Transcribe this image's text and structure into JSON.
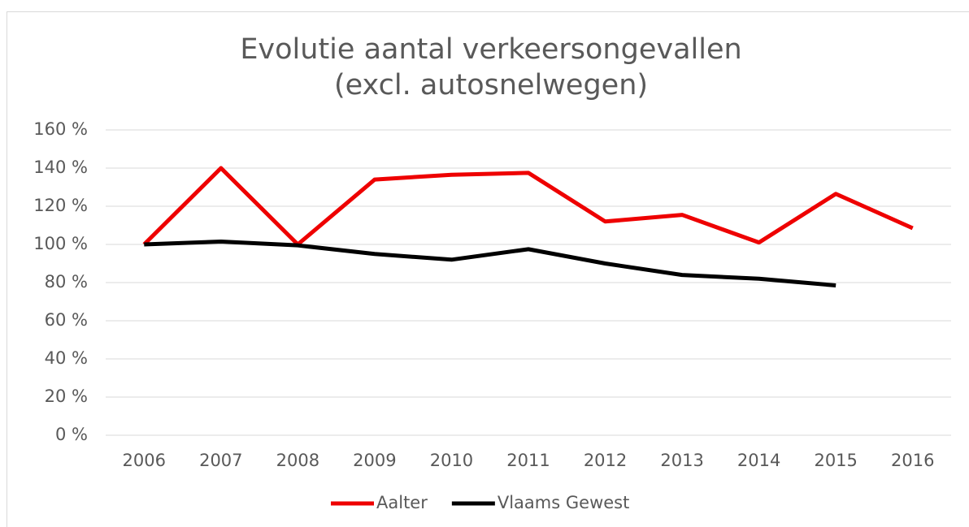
{
  "chart_data": {
    "type": "line",
    "title": [
      "Evolutie aantal verkeersongevallen",
      "(excl. autosnelwegen)"
    ],
    "categories": [
      "2006",
      "2007",
      "2008",
      "2009",
      "2010",
      "2011",
      "2012",
      "2013",
      "2014",
      "2015",
      "2016"
    ],
    "series": [
      {
        "name": "Aalter",
        "color": "#ee0000",
        "values": [
          100,
          140,
          100,
          134,
          136.5,
          137.5,
          112,
          115.5,
          101,
          126.5,
          108.5
        ]
      },
      {
        "name": "Vlaams Gewest",
        "color": "#000000",
        "values": [
          100,
          101.5,
          99.5,
          95,
          92,
          97.5,
          90,
          84,
          82,
          78.5,
          null
        ]
      }
    ],
    "ylim": [
      0,
      160
    ],
    "yticks": [
      {
        "value": 0,
        "label": "0 %"
      },
      {
        "value": 20,
        "label": "20 %"
      },
      {
        "value": 40,
        "label": "40 %"
      },
      {
        "value": 60,
        "label": "60 %"
      },
      {
        "value": 80,
        "label": "80 %"
      },
      {
        "value": 100,
        "label": "100 %"
      },
      {
        "value": 120,
        "label": "120 %"
      },
      {
        "value": 140,
        "label": "140 %"
      },
      {
        "value": 160,
        "label": "160 %"
      }
    ],
    "grid": true,
    "legend": "bottom"
  }
}
